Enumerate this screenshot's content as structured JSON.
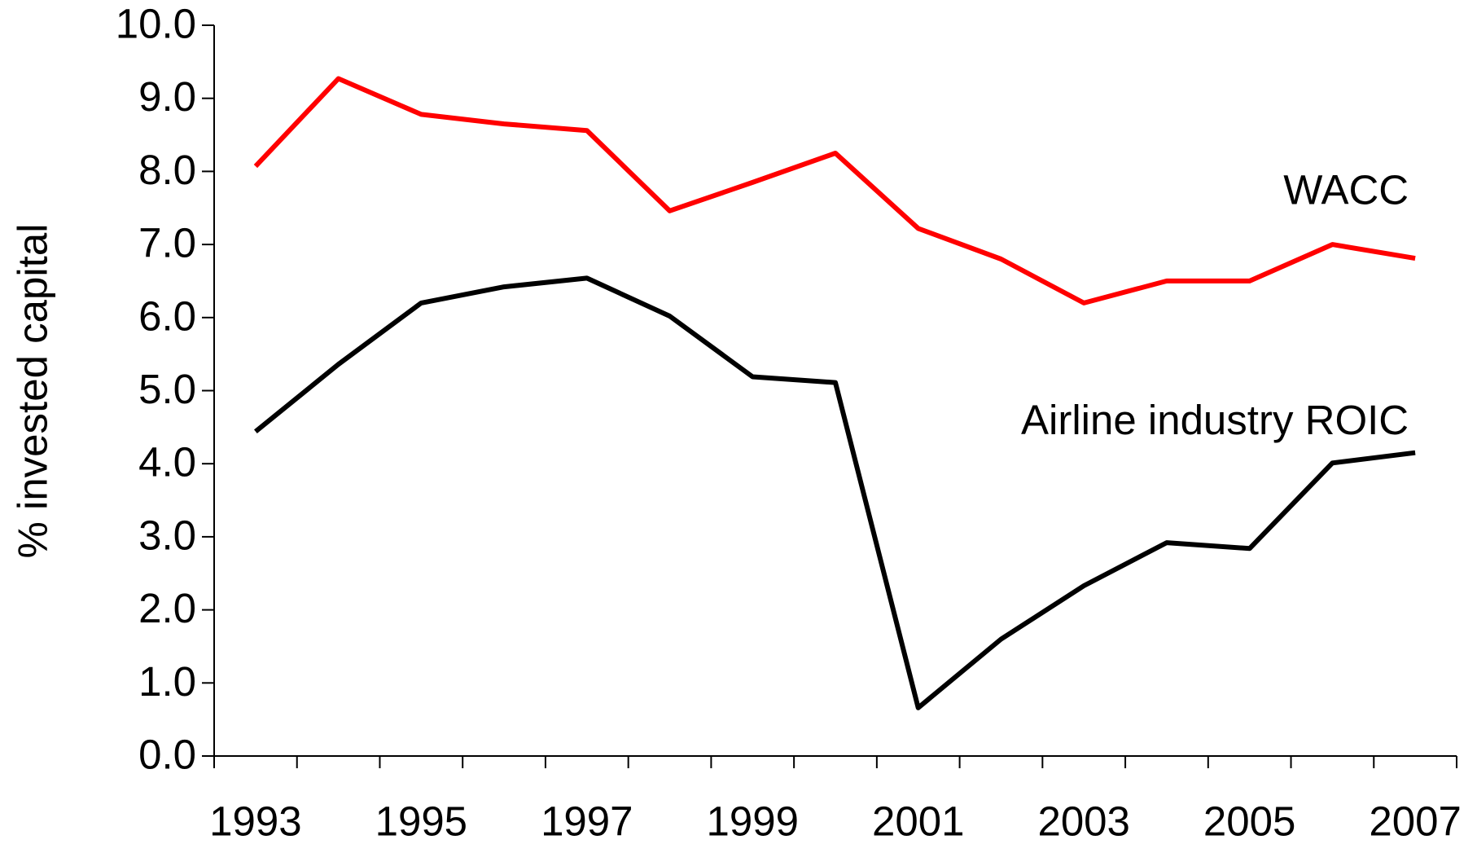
{
  "chart_data": {
    "type": "line",
    "y_label": "% invested capital",
    "categories": [
      "1993",
      null,
      "1995",
      null,
      "1997",
      null,
      "1999",
      null,
      "2001",
      null,
      "2003",
      null,
      "2005",
      null,
      "2007"
    ],
    "series": [
      {
        "name": "WACC",
        "color": "#ff0000",
        "values": [
          8.07,
          9.27,
          8.78,
          8.65,
          8.56,
          7.46,
          7.85,
          8.25,
          7.22,
          6.8,
          6.2,
          6.5,
          6.5,
          7.0,
          6.81
        ]
      },
      {
        "name": "Airline industry ROIC",
        "color": "#000000",
        "values": [
          4.44,
          5.36,
          6.2,
          6.42,
          6.54,
          6.02,
          5.19,
          5.11,
          0.66,
          1.6,
          2.33,
          2.92,
          2.84,
          4.01,
          4.15
        ]
      }
    ],
    "ylim": [
      0,
      10
    ],
    "yticks": [
      {
        "value": 0,
        "label": "0.0"
      },
      {
        "value": 1,
        "label": "1.0"
      },
      {
        "value": 2,
        "label": "2.0"
      },
      {
        "value": 3,
        "label": "3.0"
      },
      {
        "value": 4,
        "label": "4.0"
      },
      {
        "value": 5,
        "label": "5.0"
      },
      {
        "value": 6,
        "label": "6.0"
      },
      {
        "value": 7,
        "label": "7.0"
      },
      {
        "value": 8,
        "label": "8.0"
      },
      {
        "value": 9,
        "label": "9.0"
      },
      {
        "value": 10,
        "label": "10.0"
      }
    ],
    "grid": false
  }
}
